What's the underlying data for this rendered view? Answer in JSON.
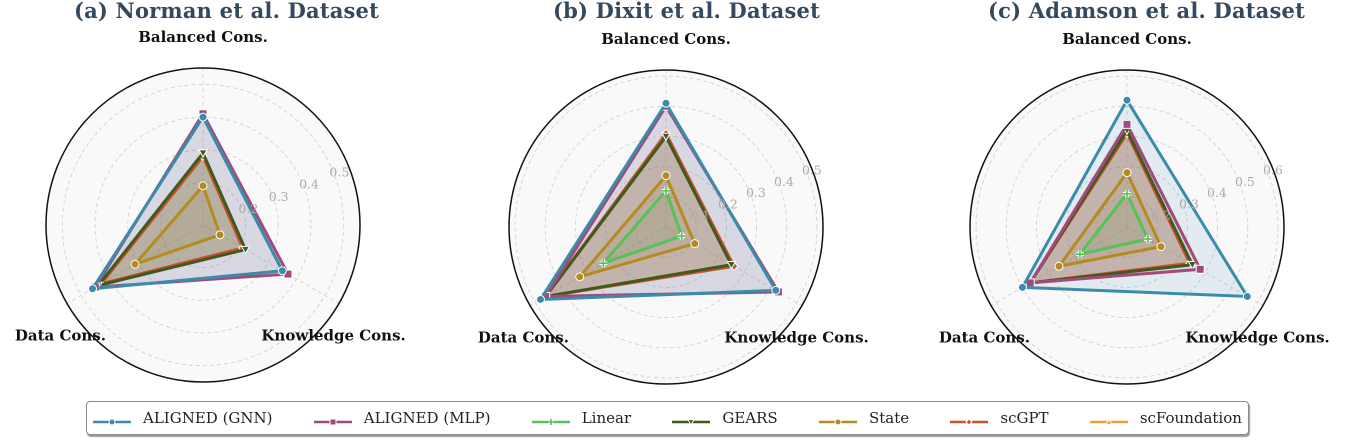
{
  "axes": [
    "Balanced Cons.",
    "Knowledge Cons.",
    "Data Cons."
  ],
  "series_styles": [
    {
      "name": "ALIGNED (GNN)",
      "color": "#3b8bab",
      "marker": "circle"
    },
    {
      "name": "ALIGNED (MLP)",
      "color": "#a24a7c",
      "marker": "square"
    },
    {
      "name": "Linear",
      "color": "#55c25a",
      "marker": "plus"
    },
    {
      "name": "GEARS",
      "color": "#3f5a1f",
      "marker": "triangle-down"
    },
    {
      "name": "State",
      "color": "#b58a1e",
      "marker": "circle"
    },
    {
      "name": "scGPT",
      "color": "#cc5030",
      "marker": "diamond"
    },
    {
      "name": "scFoundation",
      "color": "#f0a030",
      "marker": "triangle-up"
    }
  ],
  "legend": {
    "items": [
      "ALIGNED (GNN)",
      "ALIGNED (MLP)",
      "Linear",
      "GEARS",
      "State",
      "scGPT",
      "scFoundation"
    ]
  },
  "chart_data": [
    {
      "type": "radar",
      "title": "(a) Norman et al. Dataset",
      "categories": [
        "Balanced Cons.",
        "Knowledge Cons.",
        "Data Cons."
      ],
      "radial_ticks": [
        0.2,
        0.3,
        0.4,
        0.5
      ],
      "rlim": [
        0.07,
        0.55
      ],
      "series": [
        {
          "name": "ALIGNED (GNN)",
          "values": [
            0.4,
            0.35,
            0.46
          ]
        },
        {
          "name": "ALIGNED (MLP)",
          "values": [
            0.41,
            0.37,
            0.45
          ]
        },
        {
          "name": "Linear",
          "values": [
            0.28,
            0.21,
            0.43
          ]
        },
        {
          "name": "GEARS",
          "values": [
            0.29,
            0.22,
            0.44
          ]
        },
        {
          "name": "State",
          "values": [
            0.19,
            0.13,
            0.31
          ]
        },
        {
          "name": "scGPT",
          "values": [
            0.28,
            0.21,
            0.43
          ]
        },
        {
          "name": "scFoundation",
          "values": [
            0.28,
            0.21,
            0.43
          ]
        }
      ]
    },
    {
      "type": "radar",
      "title": "(b) Dixit et al. Dataset",
      "categories": [
        "Balanced Cons.",
        "Knowledge Cons.",
        "Data Cons."
      ],
      "radial_ticks": [
        0.1,
        0.2,
        0.3,
        0.4,
        0.5
      ],
      "rlim": [
        0.0,
        0.52
      ],
      "series": [
        {
          "name": "ALIGNED (GNN)",
          "values": [
            0.41,
            0.42,
            0.48
          ]
        },
        {
          "name": "ALIGNED (MLP)",
          "values": [
            0.4,
            0.43,
            0.46
          ]
        },
        {
          "name": "Linear",
          "values": [
            0.12,
            0.06,
            0.24
          ]
        },
        {
          "name": "GEARS",
          "values": [
            0.3,
            0.25,
            0.46
          ]
        },
        {
          "name": "State",
          "values": [
            0.17,
            0.11,
            0.33
          ]
        },
        {
          "name": "scGPT",
          "values": [
            0.31,
            0.26,
            0.46
          ]
        },
        {
          "name": "scFoundation",
          "values": [
            0.3,
            0.25,
            0.46
          ]
        }
      ]
    },
    {
      "type": "radar",
      "title": "(c) Adamson et al. Dataset",
      "categories": [
        "Balanced Cons.",
        "Knowledge Cons.",
        "Data Cons."
      ],
      "radial_ticks": [
        0.2,
        0.3,
        0.4,
        0.5,
        0.6
      ],
      "rlim": [
        0.1,
        0.62
      ],
      "series": [
        {
          "name": "ALIGNED (GNN)",
          "values": [
            0.52,
            0.56,
            0.5
          ]
        },
        {
          "name": "ALIGNED (MLP)",
          "values": [
            0.44,
            0.38,
            0.47
          ]
        },
        {
          "name": "Linear",
          "values": [
            0.21,
            0.18,
            0.28
          ]
        },
        {
          "name": "GEARS",
          "values": [
            0.42,
            0.35,
            0.47
          ]
        },
        {
          "name": "State",
          "values": [
            0.28,
            0.23,
            0.36
          ]
        },
        {
          "name": "scGPT",
          "values": [
            0.41,
            0.34,
            0.47
          ]
        },
        {
          "name": "scFoundation",
          "values": [
            0.41,
            0.34,
            0.47
          ]
        }
      ]
    }
  ]
}
